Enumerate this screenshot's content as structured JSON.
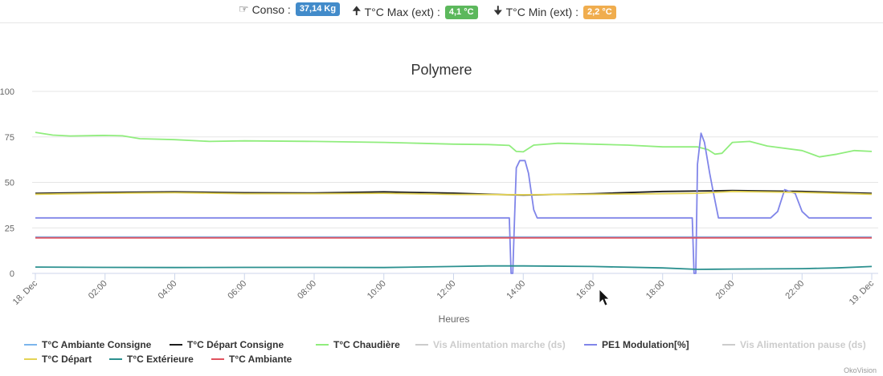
{
  "header": {
    "conso": {
      "icon": "☞",
      "label": "Conso :",
      "value": "37,14 Kg",
      "color": "#428bca"
    },
    "tmax": {
      "icon": "🠉",
      "label": "T°C Max (ext) :",
      "value": "4,1 °C",
      "color": "#5cb85c"
    },
    "tmin": {
      "icon": "🠋",
      "label": "T°C Min (ext) :",
      "value": "2,2 °C",
      "color": "#f0ad4e"
    }
  },
  "chart_data": {
    "type": "line",
    "title": "Polymere",
    "xlabel": "Heures",
    "ylabel": "",
    "ylim": [
      0,
      100
    ],
    "xlim": [
      0,
      24
    ],
    "yticks": [
      "0",
      "25",
      "50",
      "75",
      "100"
    ],
    "xticks": [
      "18. Dec",
      "02:00",
      "04:00",
      "06:00",
      "08:00",
      "10:00",
      "12:00",
      "14:00",
      "16:00",
      "18:00",
      "20:00",
      "22:00",
      "19. Dec"
    ],
    "grid": true,
    "legend_position": "bottom",
    "series": [
      {
        "name": "T°C Ambiante Consigne",
        "color": "#7cb5ec",
        "visible": true,
        "points": [
          [
            0,
            20
          ],
          [
            24,
            20
          ]
        ]
      },
      {
        "name": "T°C Départ Consigne",
        "color": "#1c1c1c",
        "visible": true,
        "points": [
          [
            0,
            44
          ],
          [
            2,
            44.5
          ],
          [
            4,
            44.8
          ],
          [
            6,
            44.3
          ],
          [
            8,
            44.2
          ],
          [
            10,
            44.8
          ],
          [
            12,
            44.1
          ],
          [
            13,
            43.5
          ],
          [
            14,
            43
          ],
          [
            16,
            43.8
          ],
          [
            18,
            45
          ],
          [
            20,
            45.5
          ],
          [
            22,
            45
          ],
          [
            23,
            44.5
          ],
          [
            24,
            44
          ]
        ]
      },
      {
        "name": "T°C Chaudière",
        "color": "#90ed7d",
        "visible": true,
        "points": [
          [
            0,
            77.5
          ],
          [
            0.5,
            76
          ],
          [
            1,
            75.5
          ],
          [
            2,
            75.8
          ],
          [
            2.5,
            75.6
          ],
          [
            3,
            74
          ],
          [
            4,
            73.5
          ],
          [
            5,
            72.5
          ],
          [
            6,
            72.8
          ],
          [
            8,
            72.5
          ],
          [
            10,
            72
          ],
          [
            11,
            71.5
          ],
          [
            12,
            71
          ],
          [
            13,
            70.8
          ],
          [
            13.6,
            70.3
          ],
          [
            13.8,
            67
          ],
          [
            14,
            66.8
          ],
          [
            14.3,
            70.5
          ],
          [
            15,
            71.5
          ],
          [
            16,
            71
          ],
          [
            17,
            70.5
          ],
          [
            18,
            69.5
          ],
          [
            19,
            69.5
          ],
          [
            19.3,
            68
          ],
          [
            19.5,
            65.5
          ],
          [
            19.7,
            66
          ],
          [
            20,
            72
          ],
          [
            20.5,
            72.5
          ],
          [
            21,
            70
          ],
          [
            22,
            67.5
          ],
          [
            22.5,
            64
          ],
          [
            23,
            65.5
          ],
          [
            23.5,
            67.5
          ],
          [
            24,
            67
          ]
        ]
      },
      {
        "name": "Vis Alimentation marche (ds)",
        "color": "#f7a35c",
        "visible": false,
        "points": []
      },
      {
        "name": "PE1 Modulation[%]",
        "color": "#8085e9",
        "visible": true,
        "points": [
          [
            0,
            30.5
          ],
          [
            13.6,
            30.5
          ],
          [
            13.65,
            0
          ],
          [
            13.7,
            0
          ],
          [
            13.75,
            30
          ],
          [
            13.8,
            58
          ],
          [
            13.9,
            62
          ],
          [
            14.05,
            62
          ],
          [
            14.15,
            55
          ],
          [
            14.3,
            35
          ],
          [
            14.4,
            30.5
          ],
          [
            18.85,
            30.5
          ],
          [
            18.9,
            0
          ],
          [
            18.95,
            0
          ],
          [
            19.0,
            60
          ],
          [
            19.1,
            77
          ],
          [
            19.2,
            72
          ],
          [
            19.35,
            55
          ],
          [
            19.45,
            45
          ],
          [
            19.6,
            30.5
          ],
          [
            21.1,
            30.5
          ],
          [
            21.3,
            34
          ],
          [
            21.5,
            46
          ],
          [
            21.8,
            44
          ],
          [
            22,
            34
          ],
          [
            22.2,
            30.5
          ],
          [
            24,
            30.5
          ]
        ]
      },
      {
        "name": "Vis Alimentation pause (ds)",
        "color": "#f15c80",
        "visible": false,
        "points": []
      },
      {
        "name": "T°C Départ",
        "color": "#e4d354",
        "visible": true,
        "points": [
          [
            0,
            43.5
          ],
          [
            2,
            44
          ],
          [
            4,
            44.3
          ],
          [
            6,
            43.8
          ],
          [
            8,
            43.8
          ],
          [
            10,
            44
          ],
          [
            12,
            43.4
          ],
          [
            14,
            43.2
          ],
          [
            16,
            43.5
          ],
          [
            18,
            43.8
          ],
          [
            19,
            44
          ],
          [
            20,
            45
          ],
          [
            22,
            44.5
          ],
          [
            24,
            43.5
          ]
        ]
      },
      {
        "name": "T°C Extérieure",
        "color": "#2b908f",
        "visible": true,
        "points": [
          [
            0,
            3.5
          ],
          [
            2,
            3.3
          ],
          [
            4,
            3.2
          ],
          [
            6,
            3.3
          ],
          [
            8,
            3.3
          ],
          [
            10,
            3.2
          ],
          [
            12,
            3.8
          ],
          [
            13,
            4.1
          ],
          [
            14,
            4.1
          ],
          [
            16,
            3.8
          ],
          [
            18,
            3
          ],
          [
            19,
            2.2
          ],
          [
            20,
            2.4
          ],
          [
            22,
            2.6
          ],
          [
            23,
            3
          ],
          [
            24,
            3.8
          ]
        ]
      },
      {
        "name": "T°C Ambiante",
        "color": "#e0525e",
        "visible": true,
        "points": [
          [
            0,
            19.5
          ],
          [
            24,
            19.5
          ]
        ]
      }
    ]
  },
  "credits": "OkoVision"
}
